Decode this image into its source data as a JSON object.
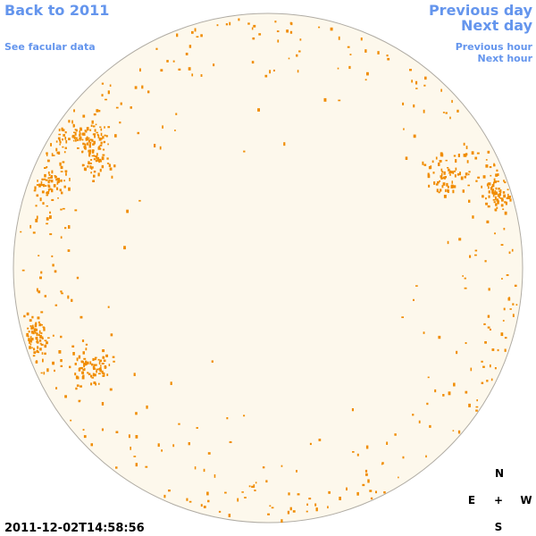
{
  "links": {
    "back": "Back to 2011",
    "facular": "See facular data",
    "previous_day": "Previous day",
    "next_day": "Next day",
    "previous_hour": "Previous hour",
    "next_hour": "Next hour"
  },
  "timestamp": "2011-12-02T14:58:56",
  "compass": {
    "north": "N",
    "east": "E",
    "center": "+",
    "west": "W",
    "south": "S"
  }
}
